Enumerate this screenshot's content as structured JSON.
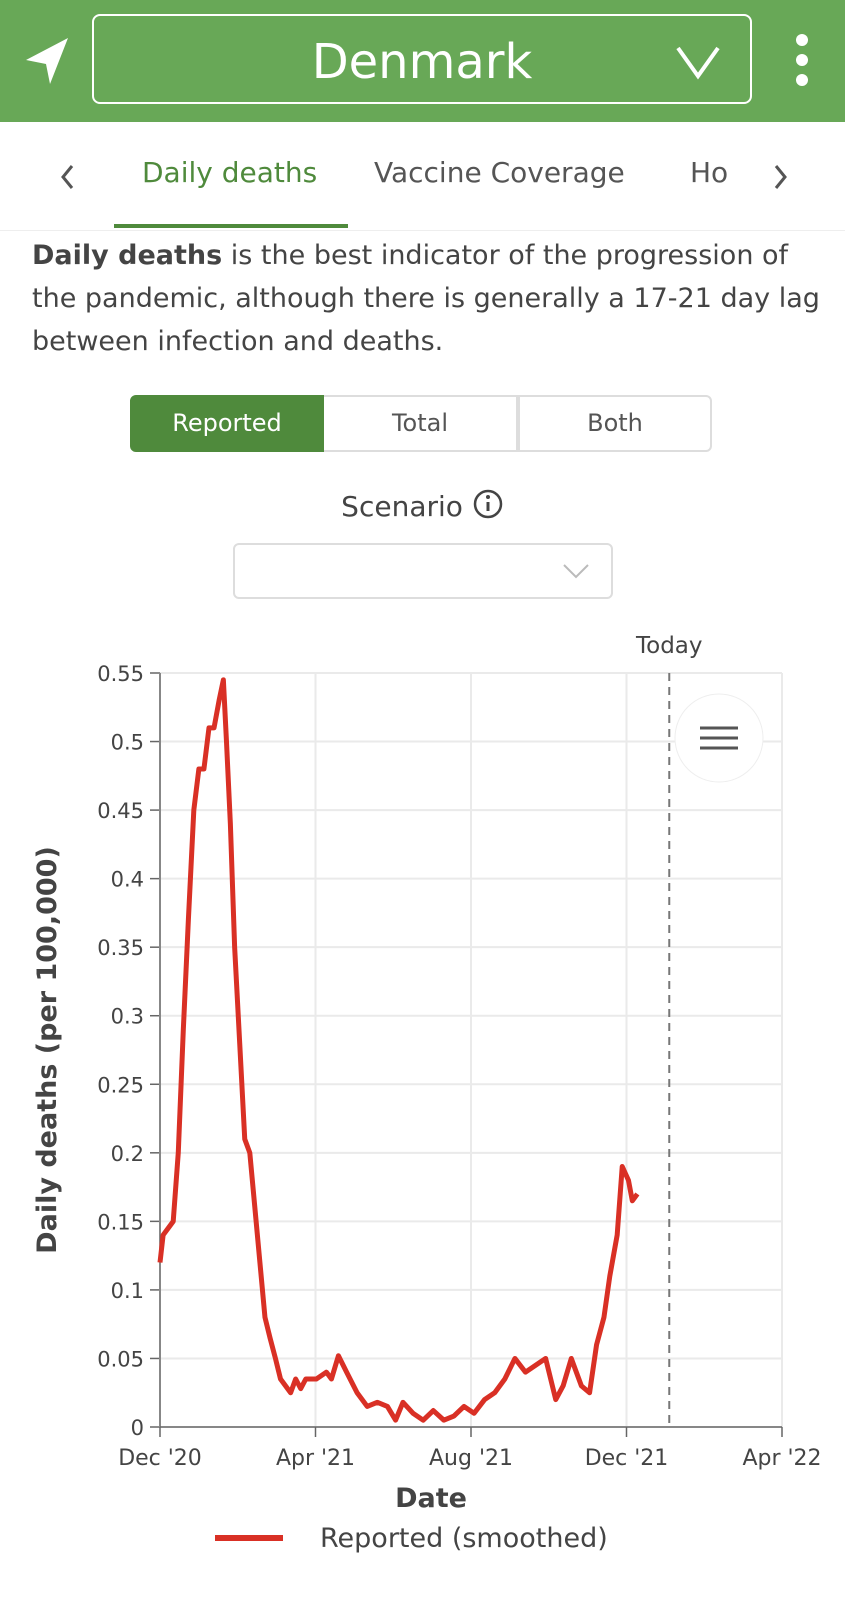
{
  "header": {
    "title": "Denmark"
  },
  "tabs": [
    "Daily deaths",
    "Vaccine Coverage",
    "Ho"
  ],
  "description": {
    "bold": "Daily deaths",
    "text": " is the best indicator of the progression of the pandemic, although there is generally a 17-21 day lag between infection and deaths."
  },
  "segments": [
    "Reported",
    "Total",
    "Both"
  ],
  "scenario": {
    "label": "Scenario"
  },
  "chart_data": {
    "type": "line",
    "ylabel": "Daily deaths (per 100,000)",
    "xlabel": "Date",
    "x": [
      0,
      0.08,
      0.21,
      0.34,
      0.47,
      0.6,
      0.73,
      0.87,
      1.0,
      1.13,
      1.26,
      1.39,
      1.52,
      1.63,
      1.71,
      1.81,
      1.92,
      2.05,
      2.18,
      2.31,
      2.44,
      2.57,
      2.7,
      2.83,
      2.97,
      3.1,
      3.23,
      3.36,
      3.49,
      3.62,
      3.75,
      4.02,
      4.28,
      4.41,
      4.59,
      4.8,
      5.07,
      5.33,
      5.59,
      5.85,
      6.06,
      6.25,
      6.51,
      6.77,
      7.03,
      7.3,
      7.56,
      7.82,
      8.08,
      8.35,
      8.61,
      8.87,
      9.13,
      9.4,
      9.66,
      9.92,
      10.18,
      10.37,
      10.58,
      10.84,
      11.05,
      11.23,
      11.42,
      11.57,
      11.76,
      11.89,
      12.05,
      12.15,
      12.28
    ],
    "series": [
      {
        "name": "Reported (smoothed)",
        "color": "#d93025",
        "values": [
          0.12,
          0.14,
          0.145,
          0.15,
          0.2,
          0.29,
          0.37,
          0.45,
          0.48,
          0.48,
          0.51,
          0.51,
          0.53,
          0.545,
          0.5,
          0.44,
          0.35,
          0.28,
          0.21,
          0.2,
          0.16,
          0.12,
          0.08,
          0.065,
          0.05,
          0.035,
          0.03,
          0.025,
          0.035,
          0.028,
          0.035,
          0.035,
          0.04,
          0.035,
          0.052,
          0.04,
          0.025,
          0.015,
          0.018,
          0.015,
          0.005,
          0.018,
          0.01,
          0.005,
          0.012,
          0.005,
          0.008,
          0.015,
          0.01,
          0.02,
          0.025,
          0.035,
          0.05,
          0.04,
          0.045,
          0.05,
          0.02,
          0.03,
          0.05,
          0.03,
          0.025,
          0.06,
          0.08,
          0.11,
          0.14,
          0.19,
          0.18,
          0.165,
          0.17
        ]
      }
    ],
    "xlim": [
      0,
      16
    ],
    "xticks": [
      {
        "value": 0,
        "label": "Dec '20"
      },
      {
        "value": 4,
        "label": "Apr '21"
      },
      {
        "value": 8,
        "label": "Aug '21"
      },
      {
        "value": 12,
        "label": "Dec '21"
      },
      {
        "value": 16,
        "label": "Apr '22"
      }
    ],
    "ylim": [
      0,
      0.55
    ],
    "yticks": [
      0,
      0.05,
      0.1,
      0.15,
      0.2,
      0.25,
      0.3,
      0.35,
      0.4,
      0.45,
      0.5,
      0.55
    ],
    "grid": true,
    "annotations": [
      {
        "text": "Today",
        "x": 13.1
      }
    ]
  }
}
